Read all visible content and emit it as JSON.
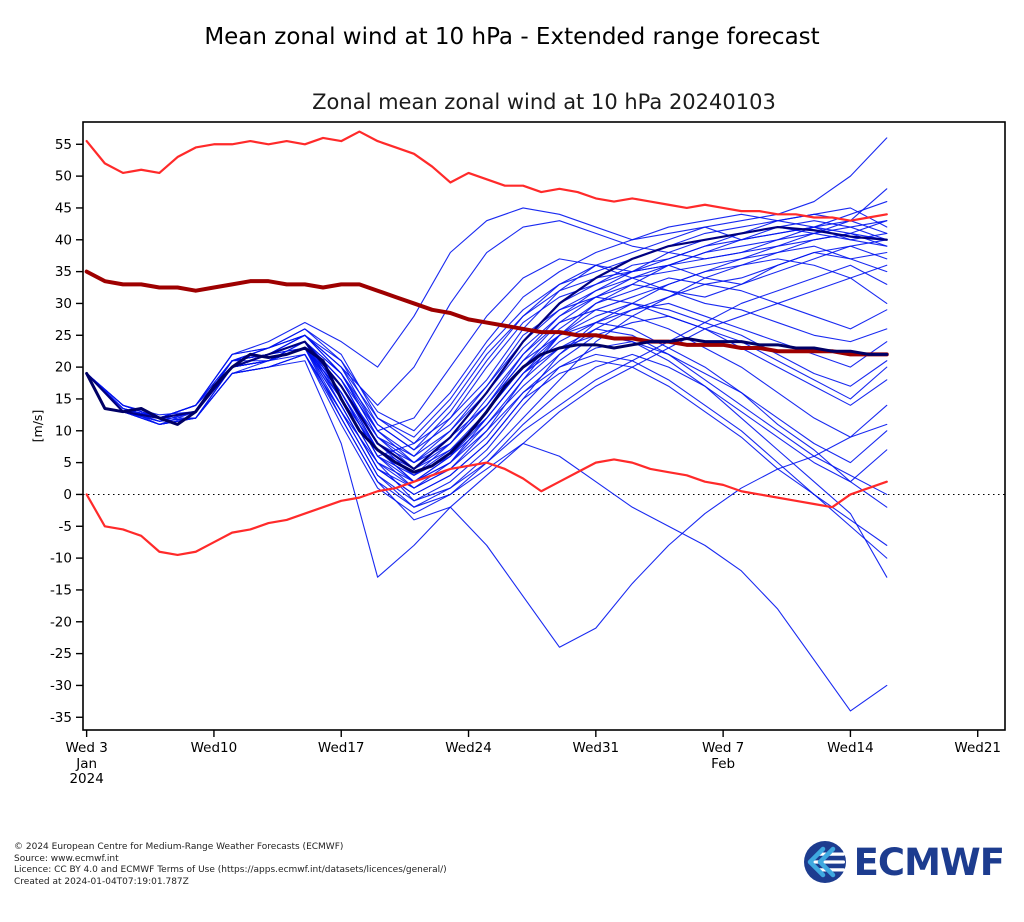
{
  "page": {
    "title": "Mean zonal wind at 10 hPa - Extended range forecast"
  },
  "footer": {
    "lines": [
      "© 2024 European Centre for Medium-Range Weather Forecasts (ECMWF)",
      "Source: www.ecmwf.int",
      "Licence: CC BY 4.0 and ECMWF Terms of Use (https://apps.ecmwf.int/datasets/licences/general/)",
      "Created at 2024-01-04T07:19:01.787Z"
    ]
  },
  "logo": {
    "text": "ECMWF",
    "color": "#1d3c8f",
    "accent": "#3fa9e0"
  },
  "chart_data": {
    "type": "line",
    "title": "Zonal mean zonal wind at 10 hPa 20240103",
    "ylabel": "[m/s]",
    "units": "m/s",
    "grid": false,
    "legend": "none",
    "xlim_days": [
      -0.2,
      50.5
    ],
    "ylim": [
      -37,
      58.5
    ],
    "zero_line": 0,
    "y_ticks": [
      -35,
      -30,
      -25,
      -20,
      -15,
      -10,
      -5,
      0,
      5,
      10,
      15,
      20,
      25,
      30,
      35,
      40,
      45,
      50,
      55
    ],
    "x_ticks": [
      {
        "day": 0,
        "label": "Wed 3"
      },
      {
        "day": 7,
        "label": "Wed10"
      },
      {
        "day": 14,
        "label": "Wed17"
      },
      {
        "day": 21,
        "label": "Wed24"
      },
      {
        "day": 28,
        "label": "Wed31"
      },
      {
        "day": 35,
        "label": "Wed 7"
      },
      {
        "day": 42,
        "label": "Wed14"
      },
      {
        "day": 49,
        "label": "Wed21"
      }
    ],
    "x_sublabels": [
      {
        "day": 0,
        "lines": [
          "Jan",
          "2024"
        ]
      },
      {
        "day": 35,
        "lines": [
          "Feb"
        ]
      }
    ],
    "days": [
      0,
      1,
      2,
      3,
      4,
      5,
      6,
      7,
      8,
      9,
      10,
      11,
      12,
      13,
      14,
      15,
      16,
      17,
      18,
      19,
      20,
      21,
      22,
      23,
      24,
      25,
      26,
      27,
      28,
      29,
      30,
      31,
      32,
      33,
      34,
      35,
      36,
      37,
      38,
      39,
      40,
      41,
      42,
      43,
      44
    ],
    "series": {
      "climatology_max": {
        "name": "climatology upper bound",
        "color": "#ff2a2a",
        "width": 2.2,
        "values": [
          55.5,
          52,
          50.5,
          51,
          50.5,
          53,
          54.5,
          55,
          55,
          55.5,
          55,
          55.5,
          55,
          56,
          55.5,
          57,
          55.5,
          54.5,
          53.5,
          51.5,
          49,
          50.5,
          49.5,
          48.5,
          48.5,
          47.5,
          48,
          47.5,
          46.5,
          46,
          46.5,
          46,
          45.5,
          45,
          45.5,
          45,
          44.5,
          44.5,
          44,
          44,
          43.5,
          43.5,
          43,
          43.5,
          44
        ]
      },
      "climatology_mean": {
        "name": "climatological mean",
        "color": "#9e0000",
        "width": 4,
        "values": [
          35,
          33.5,
          33,
          33,
          32.5,
          32.5,
          32,
          32.5,
          33,
          33.5,
          33.5,
          33,
          33,
          32.5,
          33,
          33,
          32,
          31,
          30,
          29,
          28.5,
          27.5,
          27,
          26.5,
          26,
          25.5,
          25.5,
          25,
          25,
          24.5,
          24.5,
          24,
          24,
          23.5,
          23.5,
          23.5,
          23,
          23,
          22.5,
          22.5,
          22.5,
          22.5,
          22,
          22,
          22
        ]
      },
      "climatology_min": {
        "name": "climatology lower bound",
        "color": "#ff2a2a",
        "width": 2.2,
        "values": [
          0,
          -5,
          -5.5,
          -6.5,
          -9,
          -9.5,
          -9,
          -7.5,
          -6,
          -5.5,
          -4.5,
          -4,
          -3,
          -2,
          -1,
          -0.5,
          0.5,
          1,
          2,
          3,
          4,
          4.5,
          5,
          4,
          2.5,
          0.5,
          2,
          3.5,
          5,
          5.5,
          5,
          4,
          3.5,
          3,
          2,
          1.5,
          0.5,
          0,
          -0.5,
          -1,
          -1.5,
          -2,
          0,
          1,
          2
        ]
      },
      "ensemble_mean": {
        "name": "ensemble mean",
        "color": "#000066",
        "width": 3,
        "values": [
          19,
          13.5,
          13,
          13.5,
          12,
          11,
          13,
          17,
          20,
          22,
          21.5,
          22,
          23,
          21,
          15,
          10,
          7,
          5,
          3.5,
          4.5,
          6.5,
          9.5,
          13,
          17,
          20,
          22,
          23,
          23.5,
          23.5,
          23,
          23.5,
          24,
          24,
          24.5,
          24,
          24,
          24,
          23.5,
          23.5,
          23,
          23,
          22.5,
          22.5,
          22,
          22
        ]
      }
    },
    "member_days": [
      0,
      2,
      4,
      6,
      8,
      10,
      12,
      14,
      16,
      18,
      20,
      22,
      24,
      26,
      28,
      30,
      32,
      34,
      36,
      38,
      40,
      42,
      44
    ],
    "control": {
      "name": "control forecast",
      "color": "#000080",
      "width": 2.2,
      "values": [
        19,
        13,
        12,
        13,
        20,
        22,
        24,
        17,
        8,
        4,
        9,
        16,
        24,
        30,
        34,
        37,
        39,
        40,
        41,
        42,
        41.5,
        40.5,
        40
      ]
    },
    "ensemble_members": {
      "name": "ensemble members",
      "color": "#0013f0",
      "width": 1.1,
      "values": [
        [
          19,
          13,
          12,
          13,
          20,
          22,
          24,
          18,
          8,
          5,
          8,
          14,
          22,
          28,
          32,
          35,
          38,
          40,
          41,
          42,
          41,
          40,
          41
        ],
        [
          19,
          13.5,
          11,
          13,
          21,
          21,
          23,
          16,
          6,
          2,
          5,
          10,
          18,
          25,
          30,
          33,
          36,
          38,
          40,
          41,
          42,
          40,
          39
        ],
        [
          19,
          13,
          12,
          14,
          22,
          23,
          25,
          20,
          10,
          6,
          10,
          16,
          24,
          30,
          33,
          36,
          37,
          39,
          40,
          42,
          43,
          42,
          40
        ],
        [
          19,
          14,
          12.5,
          13,
          20,
          21,
          24,
          14,
          4,
          0,
          3,
          8,
          15,
          22,
          27,
          30,
          33,
          35,
          37,
          39,
          40,
          41,
          40
        ],
        [
          19,
          13,
          11.5,
          12,
          19,
          21,
          22,
          12,
          2,
          -2,
          1,
          6,
          12,
          18,
          24,
          28,
          31,
          34,
          36,
          38,
          39,
          37,
          38
        ],
        [
          19,
          13.5,
          12,
          13,
          21,
          22,
          25,
          19,
          9,
          4,
          7,
          13,
          20,
          26,
          30,
          32,
          34,
          33,
          32,
          30,
          28,
          26,
          29
        ],
        [
          19,
          13,
          12,
          14,
          20,
          22,
          23,
          17,
          7,
          3,
          6,
          12,
          19,
          24,
          27,
          29,
          30,
          28,
          26,
          24,
          22,
          20,
          24
        ],
        [
          19,
          13,
          11,
          12,
          20,
          21,
          24,
          15,
          5,
          1,
          4,
          9,
          16,
          21,
          25,
          27,
          28,
          26,
          24,
          21,
          18,
          15,
          20
        ],
        [
          19,
          14,
          12,
          13,
          21,
          23,
          26,
          21,
          11,
          7,
          11,
          17,
          25,
          29,
          31,
          30,
          28,
          26,
          23,
          20,
          17,
          14,
          18
        ],
        [
          19,
          13,
          12,
          13,
          20,
          22,
          24,
          18,
          8,
          4,
          8,
          15,
          22,
          27,
          29,
          28,
          26,
          23,
          20,
          16,
          12,
          9,
          14
        ],
        [
          19,
          13.5,
          11.5,
          13,
          20,
          21,
          23,
          13,
          3,
          -1,
          2,
          7,
          14,
          20,
          23,
          24,
          22,
          19,
          16,
          12,
          8,
          5,
          10
        ],
        [
          19,
          13,
          12,
          12,
          19,
          20,
          22,
          11,
          1,
          -3,
          0,
          5,
          11,
          16,
          20,
          22,
          20,
          17,
          13,
          9,
          5,
          2,
          7
        ],
        [
          19,
          13,
          12,
          13,
          21,
          22,
          24,
          17,
          7,
          2,
          5,
          11,
          18,
          23,
          26,
          25,
          22,
          18,
          14,
          10,
          6,
          3,
          0
        ],
        [
          19,
          14,
          12,
          14,
          22,
          23,
          25,
          19,
          9,
          5,
          9,
          14,
          21,
          25,
          27,
          26,
          23,
          20,
          16,
          11,
          7,
          2,
          -2
        ],
        [
          19,
          13,
          11,
          12,
          20,
          21,
          23,
          14,
          4,
          0,
          3,
          8,
          15,
          19,
          21,
          20,
          17,
          13,
          9,
          4,
          0,
          -4,
          -8
        ],
        [
          19,
          13,
          12,
          13,
          20,
          22,
          24,
          16,
          6,
          1,
          4,
          10,
          16,
          20,
          22,
          21,
          18,
          14,
          10,
          5,
          0,
          -5,
          -10
        ],
        [
          19,
          13.5,
          12,
          13,
          21,
          22,
          24,
          18,
          8,
          3,
          7,
          12,
          19,
          23,
          25,
          24,
          21,
          17,
          12,
          7,
          2,
          -3,
          -13
        ],
        [
          19,
          13,
          11.5,
          12,
          19,
          20,
          22,
          13,
          3,
          -2,
          0,
          4,
          8,
          6,
          2,
          -2,
          -5,
          -8,
          -12,
          -18,
          -26,
          -34,
          -30
        ],
        [
          19,
          13,
          12,
          13,
          20,
          21,
          23,
          12,
          2,
          -4,
          -2,
          -8,
          -16,
          -24,
          -21,
          -14,
          -8,
          -3,
          1,
          4,
          6,
          9,
          11
        ],
        [
          19,
          13,
          11,
          12,
          19,
          20,
          21,
          8,
          -13,
          -8,
          -2,
          3,
          8,
          13,
          17,
          20,
          23,
          26,
          28,
          30,
          32,
          34,
          30
        ],
        [
          19,
          13,
          12,
          14,
          21,
          23,
          26,
          22,
          12,
          8,
          12,
          18,
          26,
          32,
          36,
          38,
          40,
          42,
          43,
          44,
          46,
          50,
          56
        ],
        [
          19,
          13.5,
          12,
          14,
          22,
          24,
          27,
          24,
          20,
          28,
          38,
          43,
          45,
          44,
          42,
          40,
          41,
          42,
          40,
          41,
          42,
          43,
          41
        ],
        [
          19,
          13,
          12,
          13,
          21,
          23,
          25,
          20,
          14,
          20,
          30,
          38,
          42,
          43,
          41,
          39,
          38,
          37,
          38,
          40,
          42,
          44,
          46
        ],
        [
          19,
          13,
          12,
          13,
          20,
          22,
          24,
          19,
          10,
          12,
          20,
          28,
          34,
          37,
          36,
          35,
          36,
          38,
          39,
          40,
          41,
          42,
          43
        ],
        [
          19,
          13,
          11.5,
          12,
          20,
          21,
          23,
          16,
          6,
          8,
          14,
          22,
          28,
          32,
          34,
          35,
          37,
          39,
          41,
          43,
          44,
          43,
          44
        ],
        [
          19,
          13,
          12,
          13,
          21,
          22,
          24,
          17,
          9,
          6,
          12,
          20,
          27,
          31,
          33,
          35,
          36,
          34,
          33,
          35,
          37,
          39,
          40
        ],
        [
          19,
          14,
          12,
          13,
          20,
          22,
          25,
          20,
          12,
          9,
          15,
          23,
          29,
          33,
          35,
          37,
          39,
          41,
          42,
          43,
          44,
          45,
          42
        ],
        [
          19,
          13,
          12,
          13,
          20,
          21,
          23,
          15,
          7,
          4,
          9,
          16,
          23,
          28,
          31,
          33,
          32,
          30,
          29,
          27,
          25,
          24,
          26
        ],
        [
          19,
          13,
          12,
          14,
          21,
          22,
          24,
          18,
          10,
          5,
          10,
          17,
          24,
          29,
          32,
          34,
          35,
          36,
          37,
          38,
          40,
          41,
          39
        ],
        [
          19,
          13,
          11,
          12,
          19,
          20,
          22,
          13,
          5,
          2,
          6,
          13,
          20,
          25,
          28,
          30,
          29,
          27,
          25,
          22,
          19,
          17,
          21
        ],
        [
          19,
          13,
          12,
          13,
          20,
          21,
          23,
          16,
          7,
          2,
          6,
          11,
          17,
          22,
          26,
          29,
          31,
          33,
          34,
          36,
          38,
          39,
          37
        ],
        [
          19,
          13.5,
          12,
          13,
          21,
          22,
          24,
          19,
          11,
          7,
          13,
          21,
          28,
          33,
          36,
          34,
          32,
          31,
          33,
          36,
          38,
          37,
          35
        ],
        [
          19,
          13,
          12,
          13,
          20,
          22,
          23,
          15,
          5,
          -1,
          1,
          5,
          10,
          14,
          18,
          21,
          24,
          27,
          30,
          32,
          34,
          36,
          33
        ],
        [
          19,
          13,
          12,
          13,
          21,
          22,
          25,
          21,
          13,
          10,
          16,
          24,
          31,
          35,
          38,
          40,
          42,
          43,
          44,
          43,
          42,
          41,
          43
        ],
        [
          19,
          13,
          11.5,
          13,
          20,
          21,
          23,
          14,
          4,
          1,
          5,
          12,
          19,
          25,
          29,
          31,
          33,
          35,
          36,
          37,
          36,
          34,
          36
        ],
        [
          19,
          14,
          12,
          13,
          20,
          22,
          24,
          16,
          6,
          3,
          8,
          14,
          21,
          27,
          31,
          34,
          36,
          37,
          38,
          39,
          41,
          43,
          48
        ]
      ]
    }
  }
}
